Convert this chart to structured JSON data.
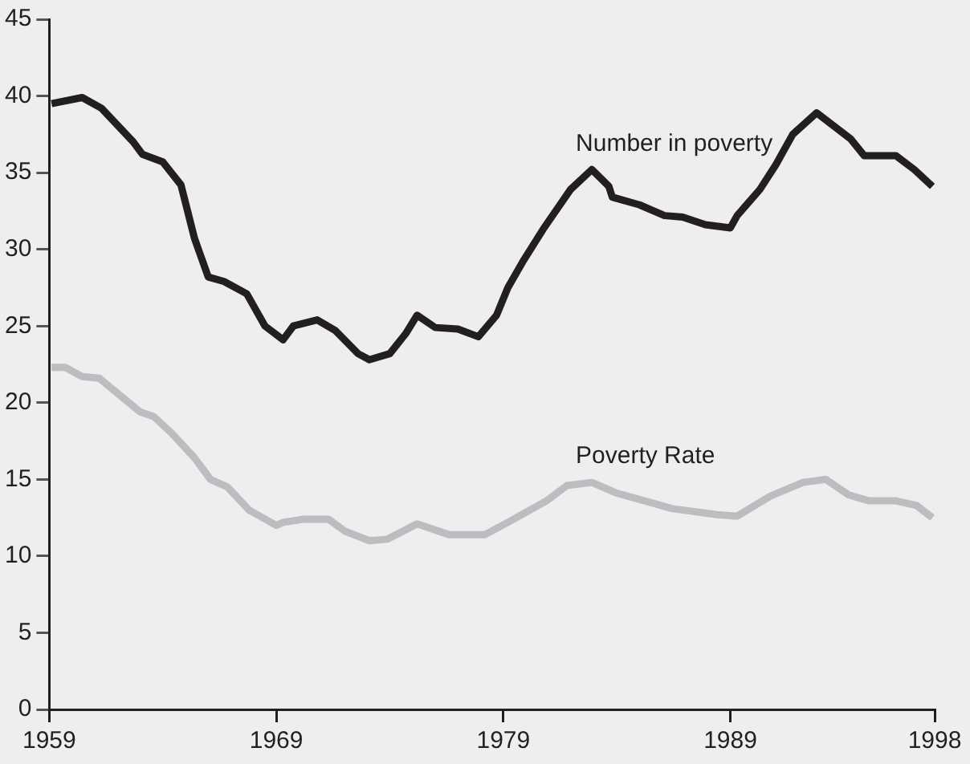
{
  "chart_data": {
    "type": "line",
    "xlim": [
      1959,
      1998
    ],
    "xticks": [
      1959,
      1969,
      1979,
      1989,
      1998
    ],
    "ylim": [
      0,
      45
    ],
    "yticks": [
      0,
      5,
      10,
      15,
      20,
      25,
      30,
      35,
      40,
      45
    ],
    "grid": false,
    "legend": false,
    "marker": "none",
    "line_style": "solid",
    "series": [
      {
        "name": "Number in poverty",
        "color": "#231f20",
        "x": [
          1959.1,
          1960.45,
          1961.3,
          1962.7,
          1963.1,
          1964,
          1964.8,
          1965.4,
          1966,
          1966.7,
          1967.7,
          1968.5,
          1969.3,
          1969.75,
          1970.8,
          1971.6,
          1972.6,
          1973.1,
          1974,
          1974.7,
          1975.2,
          1976,
          1977,
          1977.9,
          1978.7,
          1979.2,
          1979.9,
          1980.75,
          1981.96,
          1982.9,
          1983.65,
          1983.8,
          1985,
          1986.1,
          1986.9,
          1987.9,
          1989,
          1989.3,
          1990.3,
          1991,
          1991.75,
          1992.8,
          1994.3,
          1994.9,
          1996.3,
          1997.1,
          1997.9
        ],
        "values": [
          39.5,
          39.9,
          39.2,
          37.0,
          36.2,
          35.7,
          34.2,
          30.7,
          28.2,
          27.9,
          27.1,
          25.0,
          24.1,
          25.0,
          25.4,
          24.7,
          23.2,
          22.8,
          23.2,
          24.5,
          25.7,
          24.9,
          24.8,
          24.3,
          25.7,
          27.5,
          29.3,
          31.3,
          33.9,
          35.2,
          34.1,
          33.4,
          32.9,
          32.2,
          32.1,
          31.6,
          31.4,
          32.2,
          33.9,
          35.5,
          37.5,
          38.9,
          37.2,
          36.1,
          36.1,
          35.2,
          34.1
        ]
      },
      {
        "name": "Poverty Rate",
        "color": "#bcbdc0",
        "x": [
          1959.1,
          1959.7,
          1960.45,
          1961.2,
          1962.1,
          1963,
          1963.6,
          1964.4,
          1965.4,
          1966.1,
          1966.85,
          1967.8,
          1969,
          1969.3,
          1970.2,
          1971.3,
          1972.05,
          1973.1,
          1973.9,
          1975.2,
          1976.6,
          1978.2,
          1979.2,
          1980.9,
          1981.8,
          1982.9,
          1984,
          1985.7,
          1986.4,
          1988.4,
          1989.3,
          1990.75,
          1992.2,
          1993.2,
          1994.2,
          1995.1,
          1996.3,
          1997.2,
          1997.9
        ],
        "values": [
          22.3,
          22.3,
          21.7,
          21.6,
          20.5,
          19.4,
          19.1,
          18.0,
          16.4,
          15.0,
          14.5,
          13.0,
          12.0,
          12.2,
          12.4,
          12.4,
          11.6,
          11.0,
          11.1,
          12.1,
          11.4,
          11.4,
          12.2,
          13.6,
          14.6,
          14.8,
          14.1,
          13.4,
          13.1,
          12.7,
          12.6,
          13.9,
          14.8,
          15.0,
          14.0,
          13.6,
          13.6,
          13.3,
          12.5
        ]
      }
    ]
  }
}
